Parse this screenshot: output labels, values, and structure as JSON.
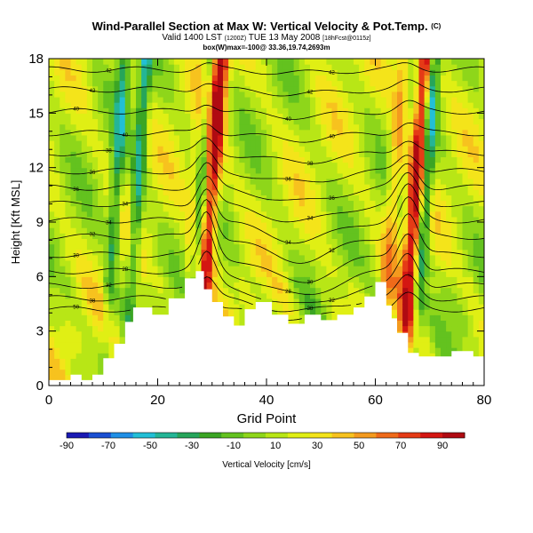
{
  "header": {
    "title": "Wind-Parallel Section at Max W: Vertical Velocity & Pot.Temp.",
    "title_mark": "(C)",
    "valid_line": "Valid 1400 LST",
    "valid_utc": "(1200Z)",
    "valid_date": "TUE 13 May 2008",
    "forecast": "[18hFcst@0115z]",
    "sub_line": "box(W)max=-100@ 33.36,19.74,2693m"
  },
  "chart_data": {
    "type": "heatmap",
    "xlabel": "Grid Point",
    "ylabel": "Height [Kft MSL]",
    "xlim": [
      0,
      80
    ],
    "ylim": [
      0,
      18
    ],
    "xticks": [
      0,
      20,
      40,
      60,
      80
    ],
    "yticks": [
      0,
      3,
      6,
      9,
      12,
      15,
      18
    ],
    "colorbar": {
      "label": "Vertical Velocity [cm/s]",
      "ticks": [
        -90,
        -70,
        -50,
        -30,
        -10,
        10,
        30,
        50,
        70,
        90
      ],
      "colors": [
        "#1a1ab4",
        "#1a4fd2",
        "#1f8fe6",
        "#22bfd6",
        "#24b596",
        "#26a55a",
        "#3ba524",
        "#63c21f",
        "#8ed61a",
        "#b8e616",
        "#e0ef14",
        "#f4e41a",
        "#f7c21e",
        "#f49a1e",
        "#ef6a1a",
        "#e53b16",
        "#d41612",
        "#b00a12"
      ]
    },
    "updrafts": [
      {
        "x": 29.5,
        "peak": 95
      },
      {
        "x": 67,
        "peak": 95
      },
      {
        "x": 27,
        "peak": 55
      },
      {
        "x": 63,
        "peak": 45
      }
    ],
    "downdrafts": [
      {
        "x": 27.5,
        "peak": -55
      },
      {
        "x": 69,
        "peak": -50
      },
      {
        "x": 16,
        "peak": -40
      },
      {
        "x": 12,
        "peak": -35
      }
    ],
    "terrain": [
      [
        0,
        0.3
      ],
      [
        4,
        0.3
      ],
      [
        4,
        0.6
      ],
      [
        6,
        0.6
      ],
      [
        6,
        0.3
      ],
      [
        8,
        0.3
      ],
      [
        8,
        0.6
      ],
      [
        10,
        0.6
      ],
      [
        10,
        1.5
      ],
      [
        12,
        1.5
      ],
      [
        12,
        2.3
      ],
      [
        14,
        2.3
      ],
      [
        14,
        3.5
      ],
      [
        15.5,
        3.5
      ],
      [
        15.5,
        4.3
      ],
      [
        19,
        4.3
      ],
      [
        19,
        3.9
      ],
      [
        22,
        3.9
      ],
      [
        22,
        4.8
      ],
      [
        25,
        4.8
      ],
      [
        25,
        5.9
      ],
      [
        27,
        5.9
      ],
      [
        27,
        6.3
      ],
      [
        28.5,
        6.3
      ],
      [
        28.5,
        5.3
      ],
      [
        30,
        5.3
      ],
      [
        30,
        4.6
      ],
      [
        32,
        4.6
      ],
      [
        32,
        3.8
      ],
      [
        34,
        3.8
      ],
      [
        34,
        3.3
      ],
      [
        36,
        3.3
      ],
      [
        36,
        4.2
      ],
      [
        38,
        4.2
      ],
      [
        38,
        4.6
      ],
      [
        41,
        4.6
      ],
      [
        41,
        3.9
      ],
      [
        44,
        3.9
      ],
      [
        44,
        3.4
      ],
      [
        47,
        3.4
      ],
      [
        47,
        3.9
      ],
      [
        50,
        3.9
      ],
      [
        50,
        3.6
      ],
      [
        53,
        3.6
      ],
      [
        53,
        3.9
      ],
      [
        56,
        3.9
      ],
      [
        56,
        4.3
      ],
      [
        58,
        4.3
      ],
      [
        58,
        4.9
      ],
      [
        60,
        4.9
      ],
      [
        60,
        5.7
      ],
      [
        62,
        5.7
      ],
      [
        62,
        4.4
      ],
      [
        63,
        4.4
      ],
      [
        63,
        3.7
      ],
      [
        64,
        3.7
      ],
      [
        64,
        2.9
      ],
      [
        66,
        2.9
      ],
      [
        66,
        1.8
      ],
      [
        68,
        1.8
      ],
      [
        68,
        1.6
      ],
      [
        74,
        1.6
      ],
      [
        74,
        1.9
      ],
      [
        78,
        1.9
      ],
      [
        78,
        1.6
      ],
      [
        80,
        1.6
      ]
    ],
    "isentropes": [
      {
        "base": 4.2,
        "amp": 0.8,
        "label": "50"
      },
      {
        "base": 4.8,
        "amp": 1.2,
        "label": "38"
      },
      {
        "base": 5.5,
        "amp": 1.8,
        "label": "32"
      },
      {
        "base": 6.3,
        "amp": 2.2,
        "label": "28"
      },
      {
        "base": 7.2,
        "amp": 2.4,
        "label": "30"
      },
      {
        "base": 8.2,
        "amp": 2.2,
        "label": "32"
      },
      {
        "base": 9.1,
        "amp": 1.9,
        "label": "34"
      },
      {
        "base": 10.0,
        "amp": 1.6,
        "label": "34"
      },
      {
        "base": 10.9,
        "amp": 1.3,
        "label": "36"
      },
      {
        "base": 11.8,
        "amp": 1.0,
        "label": "36"
      },
      {
        "base": 12.8,
        "amp": 0.8,
        "label": "38"
      },
      {
        "base": 13.9,
        "amp": 0.6,
        "label": "40"
      },
      {
        "base": 15.1,
        "amp": 0.5,
        "label": "40"
      },
      {
        "base": 16.3,
        "amp": 0.4,
        "label": "42"
      },
      {
        "base": 17.4,
        "amp": 0.3,
        "label": "42"
      }
    ]
  }
}
